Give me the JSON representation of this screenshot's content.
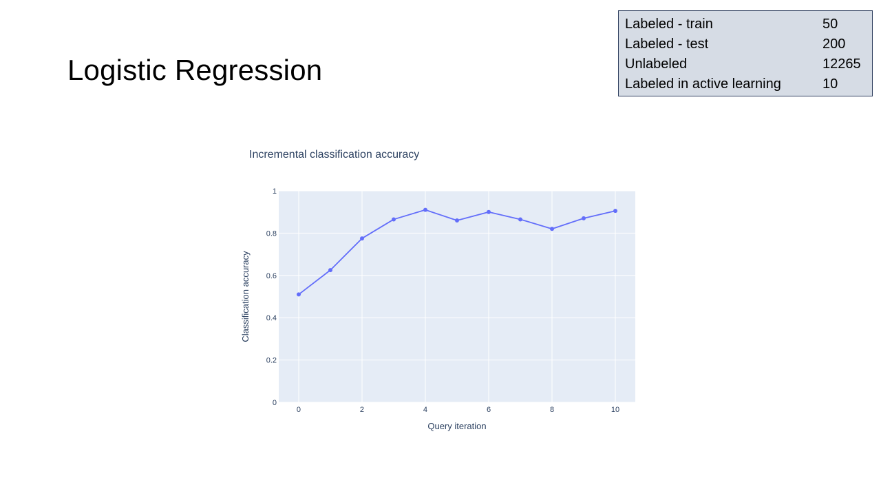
{
  "slide": {
    "title": "Logistic Regression"
  },
  "stats": [
    {
      "label": "Labeled - train",
      "value": "50"
    },
    {
      "label": "Labeled - test",
      "value": "200"
    },
    {
      "label": "Unlabeled",
      "value": "12265"
    },
    {
      "label": "Labeled in active learning",
      "value": "10"
    }
  ],
  "colors": {
    "plot_bg": "#e5ecf6",
    "line": "#636efa",
    "grid": "#ffffff",
    "stats_bg": "#d6dce5",
    "stats_border": "#2f3f5f",
    "text": "#2a3f5f"
  },
  "chart_data": {
    "type": "line",
    "title": "Incremental classification accuracy",
    "xlabel": "Query iteration",
    "ylabel": "Classification accuracy",
    "x": [
      0,
      1,
      2,
      3,
      4,
      5,
      6,
      7,
      8,
      9,
      10
    ],
    "series": [
      {
        "values": [
          0.51,
          0.625,
          0.775,
          0.865,
          0.91,
          0.86,
          0.9,
          0.865,
          0.82,
          0.87,
          0.905
        ]
      }
    ],
    "xlim": [
      -0.63,
      10.63
    ],
    "ylim": [
      0,
      1
    ],
    "xticks": [
      0,
      2,
      4,
      6,
      8,
      10
    ],
    "yticks": [
      0,
      0.2,
      0.4,
      0.6,
      0.8,
      1
    ],
    "ytick_labels": [
      "0",
      "0.2",
      "0.4",
      "0.6",
      "0.8",
      "1"
    ],
    "grid": true,
    "markers": true
  }
}
